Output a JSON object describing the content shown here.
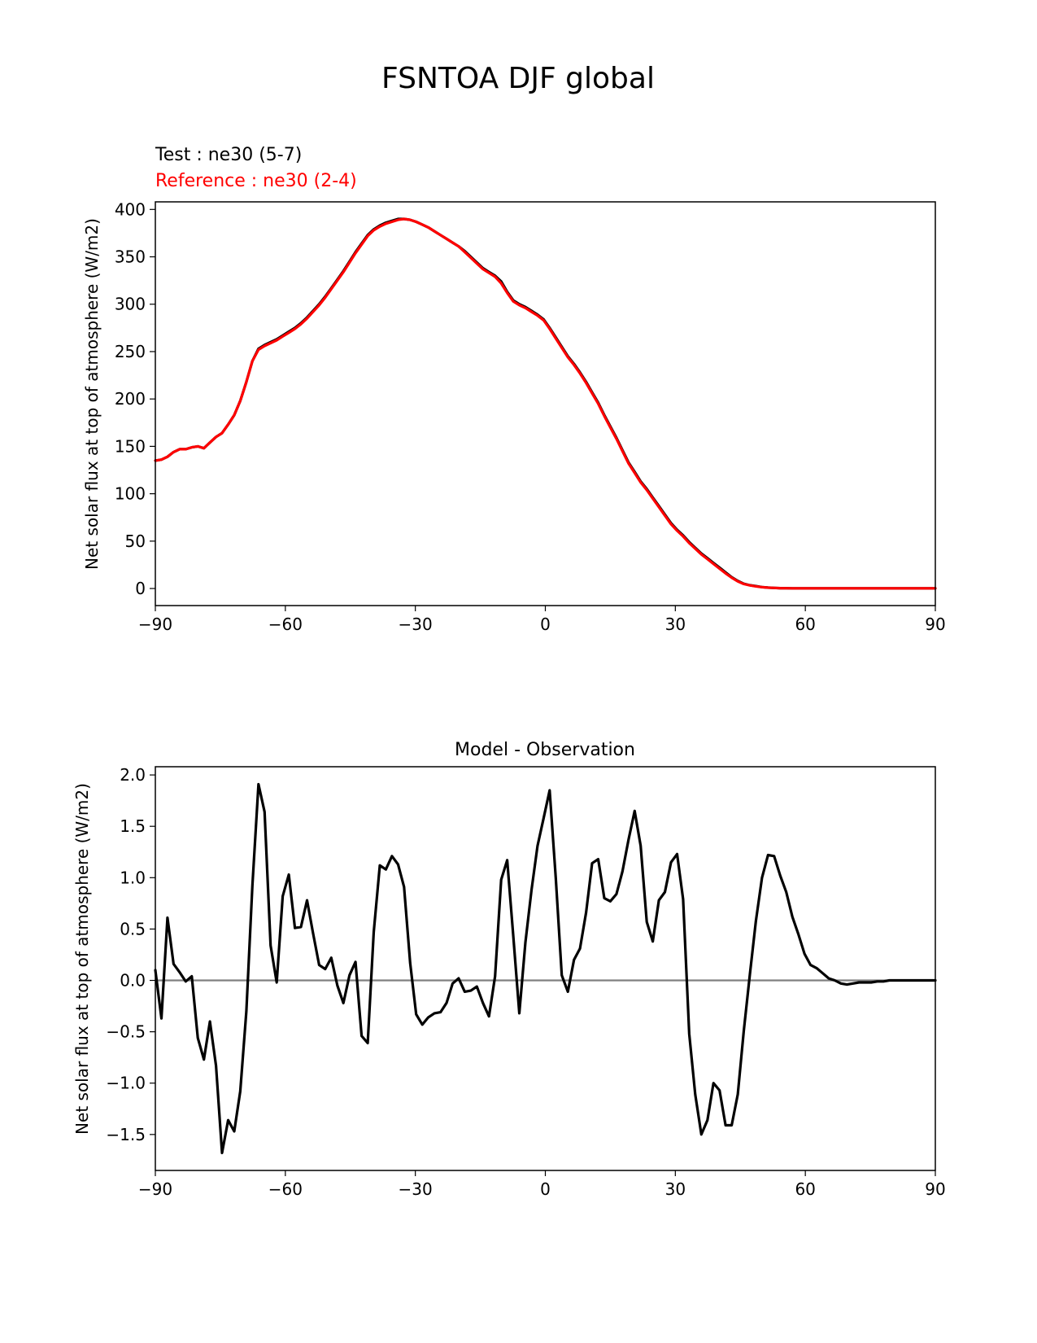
{
  "figure": {
    "title": "FSNTOA DJF global"
  },
  "chart_data": [
    {
      "type": "line",
      "title": "",
      "legend_text": {
        "test": "Test : ne30 (5-7)",
        "reference": "Reference : ne30 (2-4)"
      },
      "xlabel": "",
      "ylabel": "Net solar flux at top of atmosphere (W/m2)",
      "xlim": [
        -90,
        90
      ],
      "ylim": [
        -18,
        408
      ],
      "xticks": [
        -90,
        -60,
        -30,
        0,
        30,
        60,
        90
      ],
      "xtick_labels": [
        "−90",
        "−60",
        "−30",
        "0",
        "30",
        "60",
        "90"
      ],
      "yticks": [
        0,
        50,
        100,
        150,
        200,
        250,
        300,
        350,
        400
      ],
      "ytick_labels": [
        "0",
        "50",
        "100",
        "150",
        "200",
        "250",
        "300",
        "350",
        "400"
      ],
      "x": [
        -90,
        -88.6,
        -87.2,
        -85.8,
        -84.4,
        -83,
        -81.6,
        -80.2,
        -78.8,
        -77.4,
        -76,
        -74.6,
        -73.2,
        -71.8,
        -70.4,
        -69,
        -67.6,
        -66.2,
        -64.8,
        -63.4,
        -62,
        -60.6,
        -59.2,
        -57.8,
        -56.4,
        -55,
        -53.6,
        -52.2,
        -50.8,
        -49.4,
        -48,
        -46.6,
        -45.2,
        -43.8,
        -42.4,
        -41,
        -39.6,
        -38.2,
        -36.8,
        -35.4,
        -34,
        -32.6,
        -31.2,
        -29.8,
        -28.4,
        -27,
        -25.6,
        -24.2,
        -22.8,
        -21.4,
        -20,
        -18.6,
        -17.2,
        -15.8,
        -14.4,
        -13,
        -11.6,
        -10.2,
        -8.8,
        -7.4,
        -6,
        -4.6,
        -3.2,
        -1.8,
        -0.4,
        1,
        2.4,
        3.8,
        5.2,
        6.6,
        8,
        9.4,
        10.8,
        12.2,
        13.6,
        15,
        16.4,
        17.8,
        19.2,
        20.6,
        22,
        23.4,
        24.8,
        26.2,
        27.6,
        29,
        30.4,
        31.8,
        33.2,
        34.6,
        36,
        37.4,
        38.8,
        40.2,
        41.6,
        43,
        44.4,
        45.8,
        47.2,
        48.6,
        50,
        51.4,
        52.8,
        54.2,
        55.6,
        57,
        58.4,
        59.8,
        61.2,
        62.6,
        64,
        65.4,
        66.8,
        68.2,
        69.6,
        71,
        72.4,
        73.8,
        75.2,
        76.6,
        78,
        79.4,
        80.8,
        82.2,
        83.6,
        85,
        86.4,
        87.8,
        89.2,
        90
      ],
      "series": [
        {
          "name": "Test : ne30 (5-7)",
          "color": "#000000",
          "values": [
            135,
            136,
            139,
            144,
            147,
            147,
            149,
            150,
            148,
            154,
            160,
            164,
            173,
            183,
            198,
            218,
            240,
            253,
            257,
            260,
            263,
            267,
            271,
            275,
            280,
            286,
            293,
            300,
            308,
            317,
            326,
            335,
            345,
            355,
            364,
            373,
            379,
            383,
            386,
            388,
            390,
            390,
            389,
            387,
            384,
            381,
            377,
            373,
            369,
            365,
            361,
            356,
            350,
            344,
            338,
            334,
            330,
            324,
            313,
            304,
            300,
            297,
            293,
            289,
            284,
            275,
            265,
            255,
            245,
            237,
            228,
            218,
            207,
            196,
            183,
            171,
            159,
            146,
            133,
            123,
            113,
            105,
            96,
            87,
            78,
            69,
            62,
            56,
            49,
            43,
            37,
            32,
            27,
            22,
            17,
            12,
            8,
            5,
            3.5,
            2.5,
            1.5,
            1,
            0.6,
            0.4,
            0.3,
            0.2,
            0.2,
            0.2,
            0.2,
            0.2,
            0.2,
            0.2,
            0.2,
            0.2,
            0.2,
            0.2,
            0.2,
            0.2,
            0.2,
            0.2,
            0.2,
            0.2,
            0.2,
            0.2,
            0.2,
            0.2,
            0.2,
            0.2,
            0.2,
            0.2
          ]
        },
        {
          "name": "Reference : ne30 (2-4)",
          "color": "#ff0000",
          "values": [
            135,
            136,
            139,
            144,
            147,
            147,
            149,
            150,
            148,
            154,
            160,
            164,
            173,
            183,
            198,
            218,
            240,
            252,
            256,
            259,
            262,
            266,
            270,
            274,
            279,
            285,
            292,
            299,
            307,
            316,
            325,
            334,
            344,
            354,
            363,
            372,
            378,
            382,
            385,
            387,
            389,
            390,
            389,
            387,
            384,
            381,
            377,
            373,
            369,
            365,
            361,
            355,
            349,
            343,
            337,
            333,
            329,
            322,
            312,
            303,
            299,
            296,
            292,
            288,
            283,
            274,
            264,
            254,
            244,
            236,
            227,
            217,
            206,
            195,
            182,
            170,
            158,
            145,
            132,
            122,
            112,
            104,
            95,
            86,
            77,
            68,
            61,
            55,
            48,
            42,
            36,
            31,
            26,
            21,
            16,
            11.5,
            7.5,
            4.8,
            3.3,
            2.3,
            1.4,
            0.9,
            0.6,
            0.4,
            0.3,
            0.2,
            0.2,
            0.2,
            0.2,
            0.2,
            0.2,
            0.2,
            0.2,
            0.2,
            0.2,
            0.2,
            0.2,
            0.2,
            0.2,
            0.2,
            0.2,
            0.2,
            0.2,
            0.2,
            0.2,
            0.2,
            0.2,
            0.2,
            0.2,
            0.2
          ]
        }
      ]
    },
    {
      "type": "line",
      "title": "Model - Observation",
      "xlabel": "",
      "ylabel": "Net solar flux at top of atmosphere (W/m2)",
      "xlim": [
        -90,
        90
      ],
      "ylim": [
        -1.85,
        2.08
      ],
      "xticks": [
        -90,
        -60,
        -30,
        0,
        30,
        60,
        90
      ],
      "xtick_labels": [
        "−90",
        "−60",
        "−30",
        "0",
        "30",
        "60",
        "90"
      ],
      "yticks": [
        -1.5,
        -1.0,
        -0.5,
        0.0,
        0.5,
        1.0,
        1.5,
        2.0
      ],
      "ytick_labels": [
        "−1.5",
        "−1.0",
        "−0.5",
        "0.0",
        "0.5",
        "1.0",
        "1.5",
        "2.0"
      ],
      "zero_line_color": "#808080",
      "x": [
        -90,
        -88.6,
        -87.2,
        -85.8,
        -84.4,
        -83,
        -81.6,
        -80.2,
        -78.8,
        -77.4,
        -76,
        -74.6,
        -73.2,
        -71.8,
        -70.4,
        -69,
        -67.6,
        -66.2,
        -64.8,
        -63.4,
        -62,
        -60.6,
        -59.2,
        -57.8,
        -56.4,
        -55,
        -53.6,
        -52.2,
        -50.8,
        -49.4,
        -48,
        -46.6,
        -45.2,
        -43.8,
        -42.4,
        -41,
        -39.6,
        -38.2,
        -36.8,
        -35.4,
        -34,
        -32.6,
        -31.2,
        -29.8,
        -28.4,
        -27,
        -25.6,
        -24.2,
        -22.8,
        -21.4,
        -20,
        -18.6,
        -17.2,
        -15.8,
        -14.4,
        -13,
        -11.6,
        -10.2,
        -8.8,
        -7.4,
        -6,
        -4.6,
        -3.2,
        -1.8,
        -0.4,
        1,
        2.4,
        3.8,
        5.2,
        6.6,
        8,
        9.4,
        10.8,
        12.2,
        13.6,
        15,
        16.4,
        17.8,
        19.2,
        20.6,
        22,
        23.4,
        24.8,
        26.2,
        27.6,
        29,
        30.4,
        31.8,
        33.2,
        34.6,
        36,
        37.4,
        38.8,
        40.2,
        41.6,
        43,
        44.4,
        45.8,
        47.2,
        48.6,
        50,
        51.4,
        52.8,
        54.2,
        55.6,
        57,
        58.4,
        59.8,
        61.2,
        62.6,
        64,
        65.4,
        66.8,
        68.2,
        69.6,
        71,
        72.4,
        73.8,
        75.2,
        76.6,
        78,
        79.4,
        80.8,
        82.2,
        83.6,
        85,
        86.4,
        87.8,
        89.2,
        90
      ],
      "series": [
        {
          "name": "Model - Observation",
          "color": "#000000",
          "values": [
            0.1,
            -0.37,
            0.61,
            0.16,
            0.08,
            -0.01,
            0.04,
            -0.56,
            -0.77,
            -0.4,
            -0.83,
            -1.68,
            -1.36,
            -1.47,
            -1.08,
            -0.3,
            0.92,
            1.91,
            1.64,
            0.34,
            -0.02,
            0.82,
            1.03,
            0.51,
            0.52,
            0.78,
            0.46,
            0.15,
            0.11,
            0.22,
            -0.05,
            -0.22,
            0.05,
            0.18,
            -0.54,
            -0.61,
            0.47,
            1.12,
            1.08,
            1.21,
            1.13,
            0.91,
            0.17,
            -0.33,
            -0.43,
            -0.36,
            -0.32,
            -0.31,
            -0.22,
            -0.03,
            0.02,
            -0.11,
            -0.1,
            -0.06,
            -0.22,
            -0.35,
            0.04,
            0.98,
            1.17,
            0.43,
            -0.32,
            0.37,
            0.88,
            1.31,
            1.58,
            1.85,
            1.0,
            0.05,
            -0.11,
            0.2,
            0.31,
            0.66,
            1.14,
            1.18,
            0.8,
            0.77,
            0.84,
            1.06,
            1.37,
            1.65,
            1.31,
            0.57,
            0.38,
            0.78,
            0.86,
            1.15,
            1.23,
            0.79,
            -0.52,
            -1.11,
            -1.5,
            -1.36,
            -1.0,
            -1.07,
            -1.41,
            -1.41,
            -1.11,
            -0.49,
            0.06,
            0.58,
            1.0,
            1.22,
            1.21,
            1.02,
            0.86,
            0.62,
            0.45,
            0.26,
            0.15,
            0.12,
            0.07,
            0.02,
            0.0,
            -0.03,
            -0.04,
            -0.03,
            -0.02,
            -0.02,
            -0.02,
            -0.01,
            -0.01,
            0.0,
            0.0,
            0.0,
            0.0,
            0.0,
            0.0,
            0.0,
            0.0,
            0.0
          ]
        }
      ]
    }
  ]
}
